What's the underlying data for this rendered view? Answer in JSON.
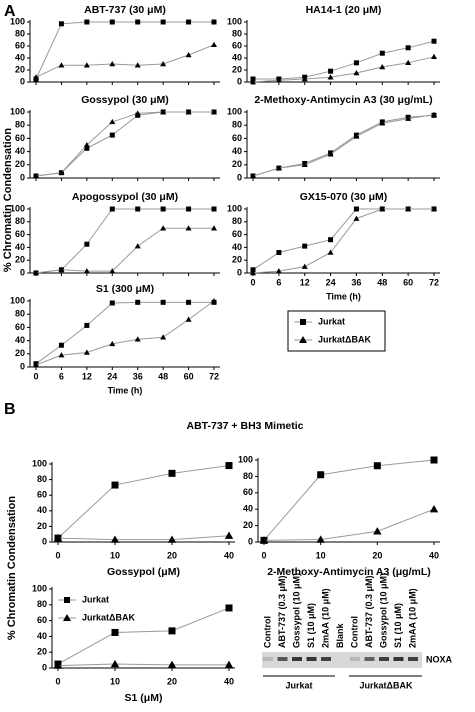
{
  "panel_labels": [
    "A",
    "B"
  ],
  "ylabels": [
    "% Chromatin Condensation",
    "% Chromatin Condensation"
  ],
  "panel_b_title": "ABT-737 + BH3 Mimetic",
  "line_color": "#999999",
  "blot": {
    "lanes": [
      "Control",
      "ABT-737 (0.3 μM)",
      "Gossypol (10 μM)",
      "S1 (10 μM)",
      "2mAA (10 μM)",
      "Blank",
      "Control",
      "ABT-737 (0.3 μM)",
      "Gossypol (10 μM)",
      "S1 (10 μM)",
      "2mAA (10 μM)"
    ],
    "band": "NOXA",
    "groups": [
      "Jurkat",
      "JurkatΔBAK"
    ]
  },
  "chart_data": [
    {
      "type": "line",
      "title": "ABT-737 (30 μM)",
      "categories": [
        null,
        null,
        null,
        null,
        null,
        null,
        null,
        null
      ],
      "ylim": [
        0,
        100
      ],
      "yticks": [
        0,
        20,
        40,
        60,
        80,
        100
      ],
      "series": [
        {
          "name": "Jurkat",
          "marker": "square",
          "color": "#000000",
          "values": [
            5,
            97,
            100,
            100,
            100,
            100,
            100,
            100
          ]
        },
        {
          "name": "JurkatΔBAK",
          "marker": "triangle",
          "color": "#000000",
          "values": [
            8,
            28,
            28,
            30,
            28,
            30,
            45,
            62
          ]
        }
      ]
    },
    {
      "type": "line",
      "title": "HA14-1 (20 μM)",
      "categories": [
        null,
        null,
        null,
        null,
        null,
        null,
        null,
        null
      ],
      "ylim": [
        0,
        100
      ],
      "yticks": [
        0,
        20,
        40,
        60,
        80,
        100
      ],
      "series": [
        {
          "name": "Jurkat",
          "marker": "square",
          "color": "#000000",
          "values": [
            5,
            5,
            8,
            18,
            32,
            48,
            57,
            68
          ]
        },
        {
          "name": "JurkatΔBAK",
          "marker": "triangle",
          "color": "#000000",
          "values": [
            0,
            3,
            5,
            8,
            15,
            25,
            32,
            42
          ]
        }
      ]
    },
    {
      "type": "line",
      "title": "Gossypol (30 μM)",
      "categories": [
        null,
        null,
        null,
        null,
        null,
        null,
        null,
        null
      ],
      "ylim": [
        0,
        100
      ],
      "yticks": [
        0,
        20,
        40,
        60,
        80,
        100
      ],
      "series": [
        {
          "name": "Jurkat",
          "marker": "square",
          "color": "#000000",
          "values": [
            3,
            8,
            45,
            65,
            95,
            100,
            100,
            100
          ]
        },
        {
          "name": "JurkatΔBAK",
          "marker": "triangle",
          "color": "#000000",
          "values": [
            3,
            8,
            50,
            85,
            98,
            100,
            100,
            100
          ]
        }
      ]
    },
    {
      "type": "line",
      "title": "2-Methoxy-Antimycin A3 (30 μg/mL)",
      "categories": [
        null,
        null,
        null,
        null,
        null,
        null,
        null,
        null
      ],
      "ylim": [
        0,
        100
      ],
      "yticks": [
        0,
        20,
        40,
        60,
        80,
        100
      ],
      "series": [
        {
          "name": "Jurkat",
          "marker": "square",
          "color": "#000000",
          "values": [
            3,
            15,
            22,
            38,
            65,
            85,
            92,
            95
          ]
        },
        {
          "name": "JurkatΔBAK",
          "marker": "triangle",
          "color": "#000000",
          "values": [
            3,
            15,
            20,
            36,
            63,
            83,
            90,
            96
          ]
        }
      ]
    },
    {
      "type": "line",
      "title": "Apogossypol (30 μM)",
      "categories": [
        null,
        null,
        null,
        null,
        null,
        null,
        null,
        null
      ],
      "ylim": [
        0,
        100
      ],
      "yticks": [
        0,
        20,
        40,
        60,
        80,
        100
      ],
      "series": [
        {
          "name": "Jurkat",
          "marker": "square",
          "color": "#000000",
          "values": [
            0,
            5,
            45,
            100,
            100,
            100,
            100,
            100
          ]
        },
        {
          "name": "JurkatΔBAK",
          "marker": "triangle",
          "color": "#000000",
          "values": [
            0,
            5,
            3,
            3,
            42,
            70,
            70,
            70
          ]
        }
      ]
    },
    {
      "type": "line",
      "title": "GX15-070 (30 μM)",
      "xlabel": "Time (h)",
      "categories": [
        "0",
        "6",
        "12",
        "24",
        "36",
        "48",
        "60",
        "72"
      ],
      "ylim": [
        0,
        100
      ],
      "yticks": [
        0,
        20,
        40,
        60,
        80,
        100
      ],
      "series": [
        {
          "name": "Jurkat",
          "marker": "square",
          "color": "#000000",
          "values": [
            5,
            32,
            42,
            52,
            100,
            100,
            100,
            100
          ]
        },
        {
          "name": "JurkatΔBAK",
          "marker": "triangle",
          "color": "#000000",
          "values": [
            0,
            3,
            10,
            32,
            85,
            100,
            100,
            100
          ]
        }
      ]
    },
    {
      "type": "line",
      "title": "S1 (300 μM)",
      "xlabel": "Time (h)",
      "categories": [
        "0",
        "6",
        "12",
        "24",
        "36",
        "48",
        "60",
        "72"
      ],
      "ylim": [
        0,
        100
      ],
      "yticks": [
        0,
        20,
        40,
        60,
        80,
        100
      ],
      "series": [
        {
          "name": "Jurkat",
          "marker": "square",
          "color": "#000000",
          "values": [
            5,
            33,
            63,
            97,
            98,
            98,
            98,
            98
          ]
        },
        {
          "name": "JurkatΔBAK",
          "marker": "triangle",
          "color": "#000000",
          "values": [
            3,
            18,
            22,
            35,
            42,
            45,
            72,
            100
          ]
        }
      ]
    },
    {
      "type": "line",
      "xlabel": "Gossypol (μM)",
      "categories": [
        "0",
        "10",
        "20",
        "40"
      ],
      "ylim": [
        0,
        100
      ],
      "yticks": [
        0,
        20,
        40,
        60,
        80,
        100
      ],
      "series": [
        {
          "name": "Jurkat",
          "marker": "square",
          "color": "#000000",
          "values": [
            5,
            73,
            88,
            98
          ]
        },
        {
          "name": "JurkatΔBAK",
          "marker": "triangle",
          "color": "#000000",
          "values": [
            5,
            3,
            3,
            8
          ]
        }
      ]
    },
    {
      "type": "line",
      "xlabel": "2-Methoxy-Antimycin A3 (μg/mL)",
      "categories": [
        "0",
        "10",
        "20",
        "40"
      ],
      "ylim": [
        0,
        100
      ],
      "yticks": [
        0,
        20,
        40,
        60,
        80,
        100
      ],
      "series": [
        {
          "name": "Jurkat",
          "marker": "square",
          "color": "#000000",
          "values": [
            2,
            82,
            93,
            100
          ]
        },
        {
          "name": "JurkatΔBAK",
          "marker": "triangle",
          "color": "#000000",
          "values": [
            2,
            3,
            13,
            40
          ]
        }
      ]
    },
    {
      "type": "line",
      "xlabel": "S1 (μM)",
      "categories": [
        "0",
        "10",
        "20",
        "40"
      ],
      "ylim": [
        0,
        100
      ],
      "yticks": [
        0,
        20,
        40,
        60,
        80,
        100
      ],
      "series": [
        {
          "name": "Jurkat",
          "marker": "square",
          "color": "#000000",
          "values": [
            5,
            45,
            47,
            76
          ]
        },
        {
          "name": "JurkatΔBAK",
          "marker": "triangle",
          "color": "#000000",
          "values": [
            3,
            5,
            4,
            4
          ]
        }
      ]
    }
  ]
}
